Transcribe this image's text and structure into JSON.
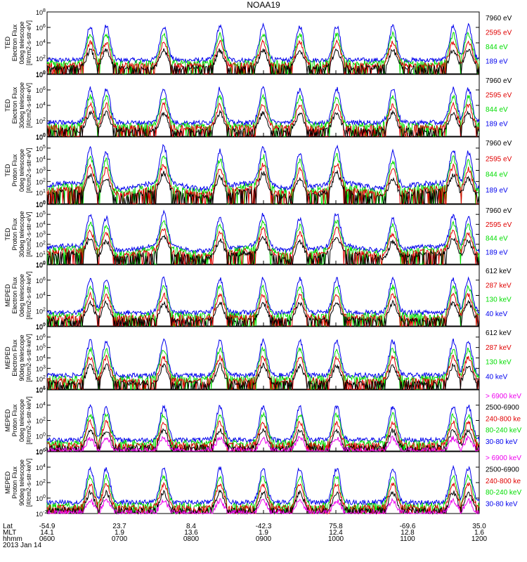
{
  "title": "NOAA19",
  "colors": {
    "black": "#000000",
    "red": "#e00000",
    "green": "#00dd00",
    "blue": "#0000ee",
    "magenta": "#ee00ee"
  },
  "xaxis": {
    "row_labels": [
      "Lat",
      "MLT",
      "hhmm",
      "2013 Jan 14"
    ],
    "ticks": [
      {
        "lat": "-54.9",
        "mlt": "14.1",
        "hhmm": "0600"
      },
      {
        "lat": "23.7",
        "mlt": "1.9",
        "hhmm": "0700"
      },
      {
        "lat": "8.4",
        "mlt": "13.6",
        "hhmm": "0800"
      },
      {
        "lat": "-42.3",
        "mlt": "1.9",
        "hhmm": "0900"
      },
      {
        "lat": "75.8",
        "mlt": "12.4",
        "hhmm": "1000"
      },
      {
        "lat": "-69.6",
        "mlt": "12.8",
        "hhmm": "1100"
      },
      {
        "lat": "35.0",
        "mlt": "1.6",
        "hhmm": "1200"
      }
    ]
  },
  "chart_data": [
    {
      "type": "line",
      "ylabel": [
        "TED",
        "Electron Flux",
        "0deg telescope",
        "[#/cm2-s-str-eV]"
      ],
      "ylim_log": [
        0,
        8
      ],
      "ticks": [
        0,
        2,
        4,
        6,
        8
      ],
      "series": [
        {
          "name": "7960 eV",
          "color": "black"
        },
        {
          "name": "2595 eV",
          "color": "red"
        },
        {
          "name": "844 eV",
          "color": "green"
        },
        {
          "name": "189 eV",
          "color": "blue"
        }
      ]
    },
    {
      "type": "line",
      "ylabel": [
        "TED",
        "Electron Flux",
        "30deg telescope",
        "[#/cm2-s-str-eV]"
      ],
      "ylim_log": [
        0,
        8
      ],
      "ticks": [
        0,
        2,
        4,
        6,
        8
      ],
      "series": [
        {
          "name": "7960 eV",
          "color": "black"
        },
        {
          "name": "2595 eV",
          "color": "red"
        },
        {
          "name": "844 eV",
          "color": "green"
        },
        {
          "name": "189 eV",
          "color": "blue"
        }
      ]
    },
    {
      "type": "line",
      "ylabel": [
        "TED",
        "Proton Flux",
        "0deg telescope",
        "[#/cm2-s-str-eV]"
      ],
      "ylim_log": [
        0,
        6
      ],
      "ticks": [
        0,
        1,
        2,
        3,
        4,
        5,
        6
      ],
      "series": [
        {
          "name": "7960 eV",
          "color": "black"
        },
        {
          "name": "2595 eV",
          "color": "red"
        },
        {
          "name": "844 eV",
          "color": "green"
        },
        {
          "name": "189 eV",
          "color": "blue"
        }
      ]
    },
    {
      "type": "line",
      "ylabel": [
        "TED",
        "Proton Flux",
        "30deg telescope",
        "[#/cm2-s-str-eV]"
      ],
      "ylim_log": [
        0,
        6
      ],
      "ticks": [
        0,
        1,
        2,
        3,
        4,
        5,
        6
      ],
      "series": [
        {
          "name": "7960 eV",
          "color": "black"
        },
        {
          "name": "2595 eV",
          "color": "red"
        },
        {
          "name": "844 eV",
          "color": "green"
        },
        {
          "name": "189 eV",
          "color": "blue"
        }
      ]
    },
    {
      "type": "line",
      "ylabel": [
        "MEPED",
        "Electron Flux",
        "0deg telescope",
        "[#/cm2-s-str-keV]"
      ],
      "ylim_log": [
        0,
        8
      ],
      "ticks": [
        0,
        2,
        4,
        6,
        8
      ],
      "series": [
        {
          "name": "612 keV",
          "color": "black"
        },
        {
          "name": "287 keV",
          "color": "red"
        },
        {
          "name": "130 keV",
          "color": "green"
        },
        {
          "name": "40 keV",
          "color": "blue"
        }
      ]
    },
    {
      "type": "line",
      "ylabel": [
        "MEPED",
        "Electron Flux",
        "90deg telescope",
        "[#/cm2-s-str-keV]"
      ],
      "ylim_log": [
        1,
        7
      ],
      "ticks": [
        1,
        2,
        3,
        4,
        5,
        6,
        7
      ],
      "series": [
        {
          "name": "612 keV",
          "color": "black"
        },
        {
          "name": "287 keV",
          "color": "red"
        },
        {
          "name": "130 keV",
          "color": "green"
        },
        {
          "name": "40 keV",
          "color": "blue"
        }
      ]
    },
    {
      "type": "line",
      "ylabel": [
        "MEPED",
        "Proton Flux",
        "0deg telescope",
        "[#/cm2-s-str-keV]"
      ],
      "ylim_log": [
        -2,
        6
      ],
      "ticks": [
        -2,
        0,
        2,
        4,
        6
      ],
      "series": [
        {
          "name": "> 6900 keV",
          "color": "magenta"
        },
        {
          "name": "2500-6900",
          "color": "black"
        },
        {
          "name": "240-800 ke",
          "color": "red"
        },
        {
          "name": "80-240 keV",
          "color": "green"
        },
        {
          "name": "30-80 keV",
          "color": "blue"
        }
      ]
    },
    {
      "type": "line",
      "ylabel": [
        "MEPED",
        "Proton Flux",
        "90deg telescope",
        "[#/cm2-s-str-keV]"
      ],
      "ylim_log": [
        -2,
        6
      ],
      "ticks": [
        -2,
        0,
        2,
        4,
        6
      ],
      "series": [
        {
          "name": "> 6900 keV",
          "color": "magenta"
        },
        {
          "name": "2500-6900",
          "color": "black"
        },
        {
          "name": "240-800 ke",
          "color": "red"
        },
        {
          "name": "80-240 keV",
          "color": "green"
        },
        {
          "name": "30-80 keV",
          "color": "blue"
        }
      ]
    }
  ]
}
